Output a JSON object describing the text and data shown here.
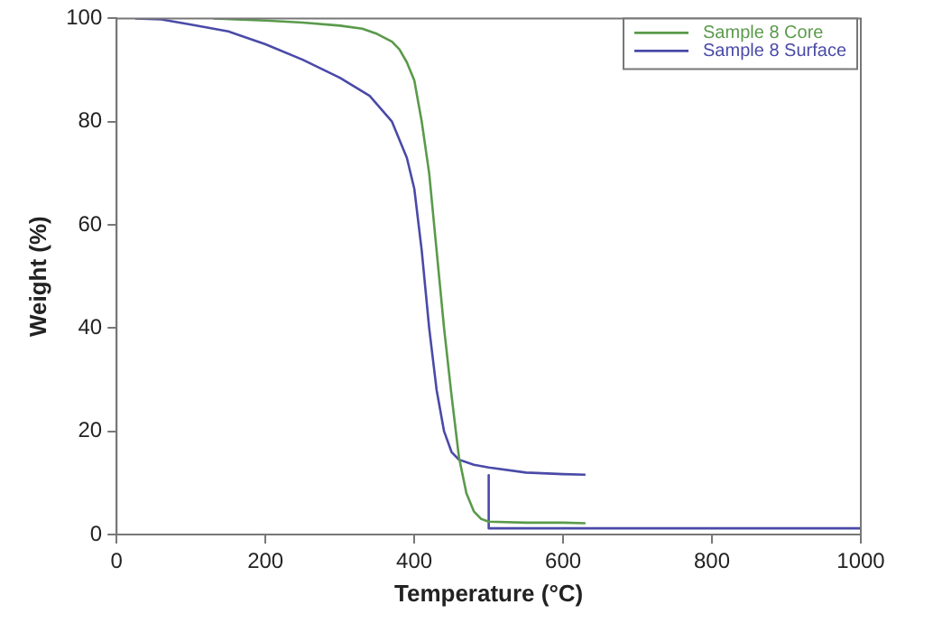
{
  "chart_data": {
    "type": "line",
    "xlabel": "Temperature (°C)",
    "ylabel": "Weight (%)",
    "xlim": [
      0,
      1000
    ],
    "xticks": [
      0,
      200,
      400,
      600,
      800,
      1000
    ],
    "ylim": [
      0,
      100
    ],
    "yticks": [
      0,
      20,
      40,
      60,
      80,
      100
    ],
    "grid": false,
    "legend": "top right",
    "marker": "none",
    "line_style": "solid",
    "series": [
      {
        "name": "Sample 8 Core",
        "color": "#5a9a4a",
        "x": [
          130,
          200,
          250,
          300,
          330,
          350,
          370,
          380,
          390,
          400,
          410,
          420,
          430,
          440,
          450,
          460,
          470,
          480,
          490,
          500,
          550,
          600,
          630
        ],
        "values": [
          100,
          99.6,
          99.2,
          98.6,
          98,
          97,
          95.5,
          94,
          91.5,
          88,
          80,
          70,
          55,
          40,
          27,
          15,
          8,
          4.5,
          3,
          2.5,
          2.3,
          2.3,
          2.2
        ]
      },
      {
        "name": "Sample 8 Surface",
        "color": "#4a4aa8",
        "x": [
          25,
          60,
          100,
          150,
          200,
          250,
          300,
          340,
          370,
          390,
          400,
          410,
          420,
          430,
          440,
          450,
          460,
          480,
          500,
          550,
          600,
          630
        ],
        "values": [
          100,
          99.8,
          98.8,
          97.5,
          95,
          92,
          88.5,
          85,
          80,
          73,
          67,
          55,
          40,
          28,
          20,
          16,
          14.5,
          13.5,
          13,
          12,
          11.7,
          11.6
        ]
      },
      {
        "color": "#4a4aa8",
        "x": [
          500,
          500,
          1000
        ],
        "values": [
          11.5,
          1.2,
          1.2
        ]
      }
    ]
  }
}
